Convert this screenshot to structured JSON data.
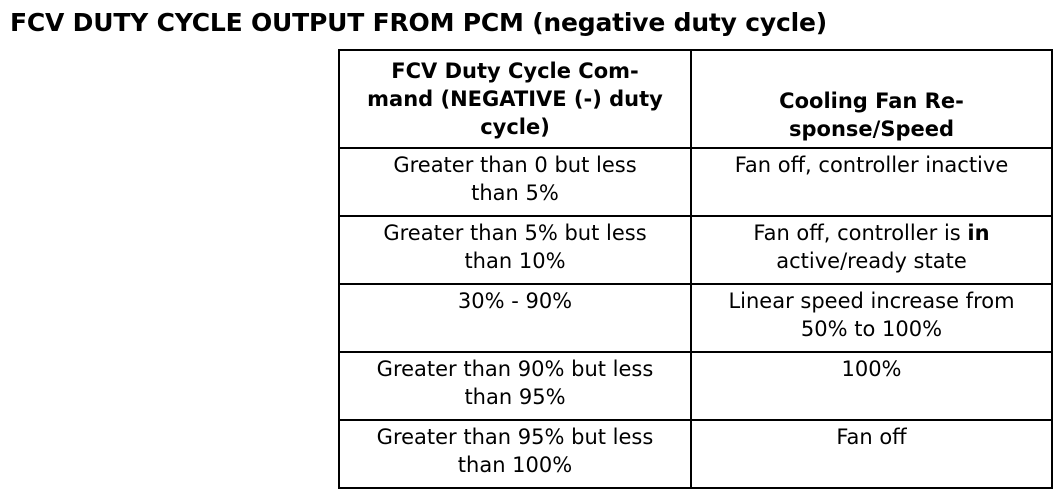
{
  "title": "FCV DUTY CYCLE OUTPUT FROM PCM (negative duty cycle)",
  "table": {
    "headers": [
      "FCV Duty Cycle Com-mand (NEGATIVE (-) duty cycle)",
      "Cooling Fan Re-sponse/Speed"
    ],
    "header_lines": [
      [
        "FCV Duty Cycle Com-",
        "mand (NEGATIVE (-) duty",
        "cycle)"
      ],
      [
        "Cooling Fan Re-",
        "sponse/Speed"
      ]
    ],
    "rows": [
      {
        "command": [
          "Greater than 0 but less",
          "than 5%"
        ],
        "response": [
          "Fan off, controller inactive"
        ]
      },
      {
        "command": [
          "Greater than 5% but less",
          "than 10%"
        ],
        "response_parts": [
          "Fan off, controller is ",
          "in",
          "active/ready state"
        ]
      },
      {
        "command": [
          "30% - 90%"
        ],
        "response": [
          "Linear speed increase from",
          "50% to 100%"
        ]
      },
      {
        "command": [
          "Greater than 90% but less",
          "than 95%"
        ],
        "response": [
          "100%"
        ]
      },
      {
        "command": [
          "Greater than 95% but less",
          "than 100%"
        ],
        "response": [
          "Fan off"
        ]
      }
    ]
  }
}
